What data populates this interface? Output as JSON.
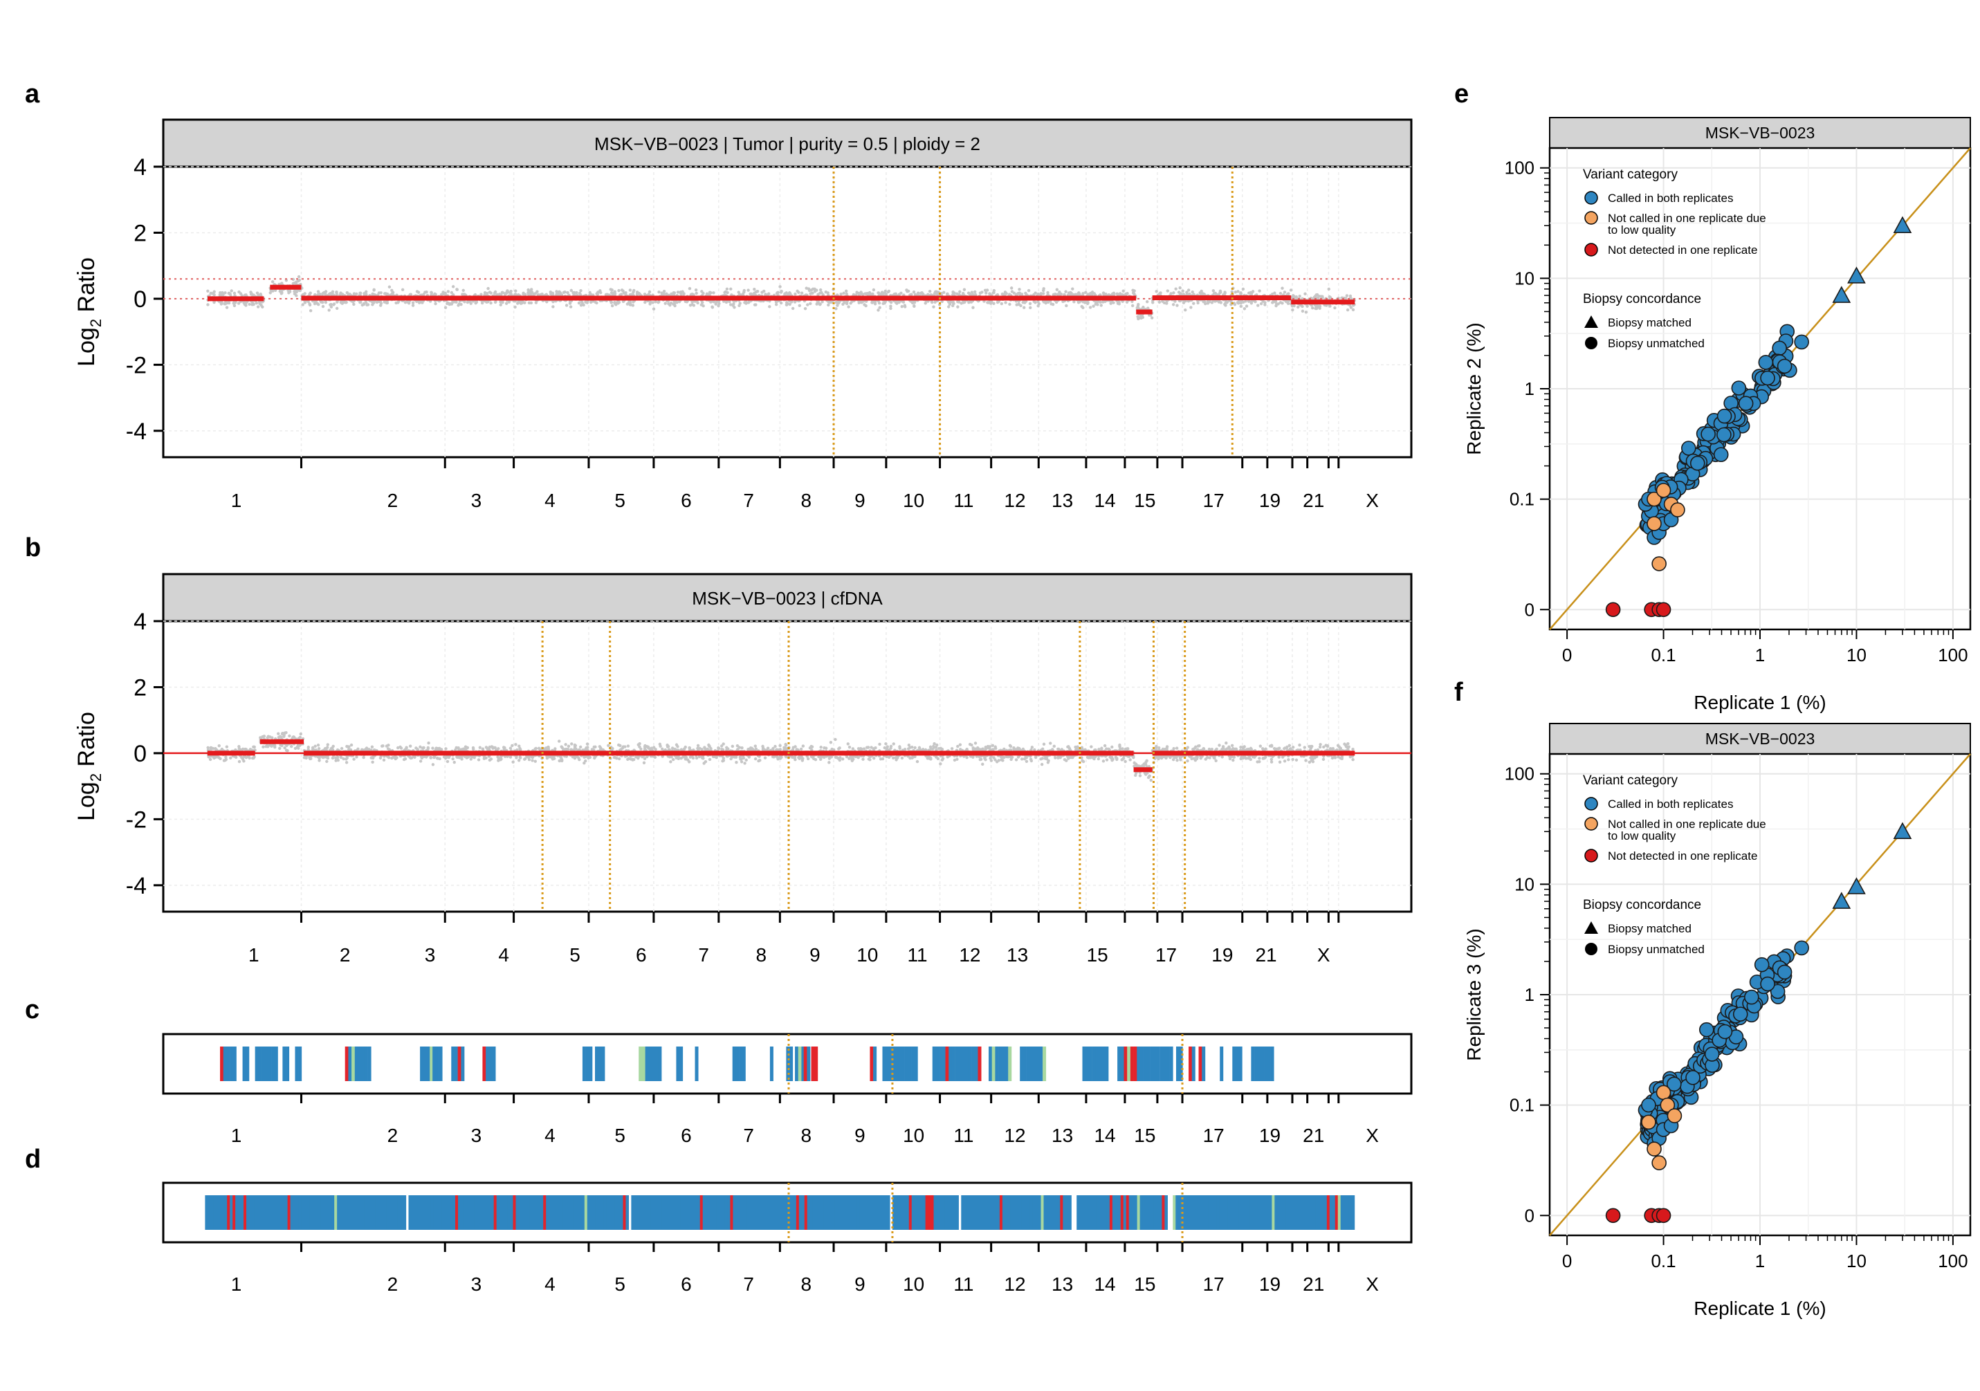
{
  "panel_letters": [
    "a",
    "b",
    "c",
    "d",
    "e",
    "f"
  ],
  "colors": {
    "segment": "#e41a1c",
    "points": "#c6c6c6",
    "orange_line": "#d99a1a",
    "strip_blue": "#2e86c1",
    "strip_red": "#e3242b",
    "strip_green": "#a8d8a0",
    "header_bg": "#d3d3d3",
    "called": "#2e86c1",
    "not_called": "#f4a460",
    "not_detected": "#d7191c",
    "diag": "#c8901a"
  },
  "chart_data": [
    {
      "id": "a",
      "type": "scatter",
      "title": "MSK−VB−0023 | Tumor | purity = 0.5 | ploidy = 2",
      "xlabel": "",
      "ylabel": "Log2 Ratio",
      "ylabel_main": "Log",
      "ylabel_sub": "2",
      "ylabel_rest": " Ratio",
      "ylim": [
        -4.8,
        4
      ],
      "yticks": [
        -4,
        -2,
        0,
        2,
        4
      ],
      "chromosome_labels": [
        {
          "label": "1",
          "pos": 23
        },
        {
          "label": "2",
          "pos": 148
        },
        {
          "label": "3",
          "pos": 215
        },
        {
          "label": "4",
          "pos": 274
        },
        {
          "label": "5",
          "pos": 330
        },
        {
          "label": "6",
          "pos": 383
        },
        {
          "label": "7",
          "pos": 433
        },
        {
          "label": "8",
          "pos": 479
        },
        {
          "label": "9",
          "pos": 522
        },
        {
          "label": "10",
          "pos": 565
        },
        {
          "label": "11",
          "pos": 605
        },
        {
          "label": "12",
          "pos": 646
        },
        {
          "label": "13",
          "pos": 684
        },
        {
          "label": "14",
          "pos": 718
        },
        {
          "label": "15",
          "pos": 750
        },
        {
          "label": "17",
          "pos": 805
        },
        {
          "label": "19",
          "pos": 850
        },
        {
          "label": "21",
          "pos": 885
        },
        {
          "label": "X",
          "pos": 932
        }
      ],
      "tick_positions": [
        75,
        190,
        245,
        305,
        357,
        409,
        458,
        501,
        543,
        586,
        627,
        665,
        703,
        734,
        760,
        780,
        828,
        848,
        868,
        880,
        897,
        905
      ],
      "segments": [
        {
          "start": 0,
          "end": 45,
          "value": 0.0
        },
        {
          "start": 50,
          "end": 75,
          "value": 0.35
        },
        {
          "start": 75,
          "end": 743,
          "value": 0.02
        },
        {
          "start": 743,
          "end": 756,
          "value": -0.4
        },
        {
          "start": 756,
          "end": 867,
          "value": 0.03
        },
        {
          "start": 867,
          "end": 918,
          "value": -0.1
        }
      ],
      "dotted_hlines": [
        0.0,
        0.6
      ],
      "orange_vlines": [
        501,
        586,
        820
      ]
    },
    {
      "id": "b",
      "type": "scatter",
      "title": "MSK−VB−0023 | cfDNA",
      "xlabel": "",
      "ylabel": "Log2 Ratio",
      "ylabel_main": "Log",
      "ylabel_sub": "2",
      "ylabel_rest": " Ratio",
      "ylim": [
        -4.8,
        4
      ],
      "yticks": [
        -4,
        -2,
        0,
        2,
        4
      ],
      "chromosome_labels": [
        {
          "label": "1",
          "pos": 37
        },
        {
          "label": "2",
          "pos": 110
        },
        {
          "label": "3",
          "pos": 178
        },
        {
          "label": "4",
          "pos": 237
        },
        {
          "label": "5",
          "pos": 294
        },
        {
          "label": "6",
          "pos": 347
        },
        {
          "label": "7",
          "pos": 397
        },
        {
          "label": "8",
          "pos": 443
        },
        {
          "label": "9",
          "pos": 486
        },
        {
          "label": "10",
          "pos": 528
        },
        {
          "label": "11",
          "pos": 568
        },
        {
          "label": "12",
          "pos": 610
        },
        {
          "label": "13",
          "pos": 648
        },
        {
          "label": "15",
          "pos": 712
        },
        {
          "label": "17",
          "pos": 767
        },
        {
          "label": "19",
          "pos": 812
        },
        {
          "label": "21",
          "pos": 847
        },
        {
          "label": "X",
          "pos": 893
        }
      ],
      "tick_positions": [
        75,
        190,
        245,
        305,
        357,
        409,
        458,
        501,
        543,
        586,
        627,
        665,
        703,
        734,
        760,
        780,
        828,
        848,
        868,
        880,
        897,
        905
      ],
      "segments": [
        {
          "start": 0,
          "end": 38,
          "value": 0.0
        },
        {
          "start": 42,
          "end": 77,
          "value": 0.35
        },
        {
          "start": 77,
          "end": 741,
          "value": 0.0
        },
        {
          "start": 741,
          "end": 756,
          "value": -0.5
        },
        {
          "start": 756,
          "end": 918,
          "value": 0.0
        }
      ],
      "red_hline": 0.0,
      "orange_vlines": [
        268,
        322,
        465,
        698,
        757,
        782
      ]
    },
    {
      "id": "c",
      "type": "heatmap",
      "chromosome_labels": [
        {
          "label": "1",
          "pos": 37
        },
        {
          "label": "2",
          "pos": 110
        },
        {
          "label": "3",
          "pos": 178
        },
        {
          "label": "4",
          "pos": 237
        },
        {
          "label": "5",
          "pos": 293
        },
        {
          "label": "6",
          "pos": 346
        },
        {
          "label": "7",
          "pos": 397
        },
        {
          "label": "8",
          "pos": 443
        },
        {
          "label": "9",
          "pos": 486
        },
        {
          "label": "10",
          "pos": 528
        },
        {
          "label": "11",
          "pos": 568
        },
        {
          "label": "12",
          "pos": 609
        },
        {
          "label": "13",
          "pos": 648
        },
        {
          "label": "14",
          "pos": 681
        },
        {
          "label": "15",
          "pos": 712
        },
        {
          "label": "17",
          "pos": 767
        },
        {
          "label": "19",
          "pos": 812
        },
        {
          "label": "21",
          "pos": 847
        },
        {
          "label": "X",
          "pos": 893
        }
      ],
      "orange_vlines": [
        465,
        548,
        780
      ]
    },
    {
      "id": "d",
      "type": "heatmap",
      "chromosome_labels": [
        {
          "label": "1",
          "pos": 37
        },
        {
          "label": "2",
          "pos": 110
        },
        {
          "label": "3",
          "pos": 178
        },
        {
          "label": "4",
          "pos": 237
        },
        {
          "label": "5",
          "pos": 293
        },
        {
          "label": "6",
          "pos": 346
        },
        {
          "label": "7",
          "pos": 397
        },
        {
          "label": "8",
          "pos": 443
        },
        {
          "label": "9",
          "pos": 486
        },
        {
          "label": "10",
          "pos": 528
        },
        {
          "label": "11",
          "pos": 568
        },
        {
          "label": "12",
          "pos": 609
        },
        {
          "label": "13",
          "pos": 648
        },
        {
          "label": "14",
          "pos": 681
        },
        {
          "label": "15",
          "pos": 712
        },
        {
          "label": "17",
          "pos": 767
        },
        {
          "label": "19",
          "pos": 812
        },
        {
          "label": "21",
          "pos": 847
        },
        {
          "label": "X",
          "pos": 893
        }
      ],
      "orange_vlines": [
        465,
        548,
        780
      ]
    },
    {
      "id": "e",
      "type": "scatter",
      "title": "MSK−VB−0023",
      "xlabel": "Replicate 1 (%)",
      "ylabel": "Replicate 2 (%)",
      "x_ticks": [
        "0",
        "0.1",
        "1",
        "10",
        "100"
      ],
      "y_ticks": [
        "0",
        "0.1",
        "1",
        "10",
        "100"
      ],
      "legend": {
        "category_title": "Variant category",
        "categories": [
          "Called in both replicates",
          "Not called in one replicate due",
          "to low quality",
          "Not detected in one replicate"
        ],
        "concordance_title": "Biopsy concordance",
        "concordance": [
          "Biopsy matched",
          "Biopsy unmatched"
        ]
      },
      "triangles": [
        [
          7,
          7
        ],
        [
          10,
          10.5
        ],
        [
          30,
          30
        ]
      ],
      "orange_points": [
        [
          0.08,
          0.1
        ],
        [
          0.1,
          0.12
        ],
        [
          0.12,
          0.09
        ],
        [
          0.08,
          0.06
        ],
        [
          0.09,
          0.026
        ],
        [
          0.14,
          0.08
        ]
      ],
      "red_points": [
        [
          0.03,
          0
        ],
        [
          0.075,
          0
        ],
        [
          0.09,
          0
        ],
        [
          0.1,
          0
        ]
      ]
    },
    {
      "id": "f",
      "type": "scatter",
      "title": "MSK−VB−0023",
      "xlabel": "Replicate 1 (%)",
      "ylabel": "Replicate 3 (%)",
      "x_ticks": [
        "0",
        "0.1",
        "1",
        "10",
        "100"
      ],
      "y_ticks": [
        "0",
        "0.1",
        "1",
        "10",
        "100"
      ],
      "legend": {
        "category_title": "Variant category",
        "categories": [
          "Called in both replicates",
          "Not called in one replicate due",
          "to low quality",
          "Not detected in one replicate"
        ],
        "concordance_title": "Biopsy concordance",
        "concordance": [
          "Biopsy matched",
          "Biopsy unmatched"
        ]
      },
      "triangles": [
        [
          7,
          7
        ],
        [
          10,
          9.5
        ],
        [
          30,
          30
        ]
      ],
      "orange_points": [
        [
          0.07,
          0.07
        ],
        [
          0.08,
          0.04
        ],
        [
          0.09,
          0.03
        ],
        [
          0.1,
          0.13
        ],
        [
          0.11,
          0.1
        ],
        [
          0.13,
          0.08
        ]
      ],
      "red_points": [
        [
          0.03,
          0
        ],
        [
          0.075,
          0
        ],
        [
          0.09,
          0
        ],
        [
          0.1,
          0
        ]
      ]
    }
  ]
}
